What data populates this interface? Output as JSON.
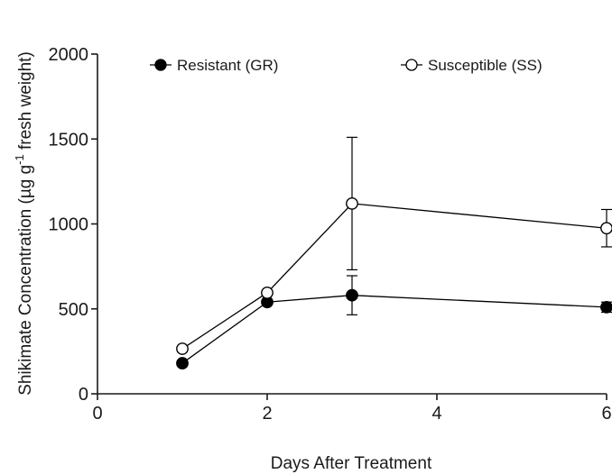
{
  "chart_data": {
    "type": "line",
    "title": "",
    "xlabel": "Days After Treatment",
    "ylabel_main": "Shikimate  Concentration (µg g",
    "ylabel_sup": "-1",
    "ylabel_tail": " fresh weight)",
    "xlim": [
      0,
      6
    ],
    "ylim": [
      0,
      2000
    ],
    "xticks": [
      "0",
      "2",
      "4",
      "6"
    ],
    "yticks": [
      "0",
      "500",
      "1000",
      "1500",
      "2000"
    ],
    "grid": false,
    "legend_position": "top",
    "series": [
      {
        "name": "Resistant (GR)",
        "marker": "filled-circle",
        "color": "#000000",
        "x": [
          1,
          2,
          3,
          6
        ],
        "y": [
          180,
          540,
          580,
          510
        ],
        "err": [
          0,
          0,
          115,
          30
        ]
      },
      {
        "name": "Susceptible (SS)",
        "marker": "open-circle",
        "color": "#000000",
        "x": [
          1,
          2,
          3,
          6
        ],
        "y": [
          265,
          595,
          1120,
          975
        ],
        "err": [
          0,
          0,
          390,
          110
        ]
      }
    ]
  }
}
